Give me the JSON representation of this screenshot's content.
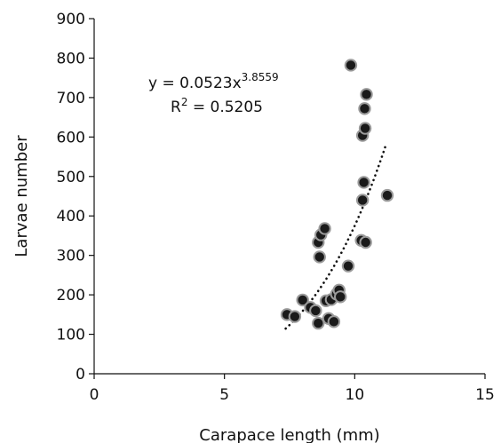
{
  "chart_data": {
    "type": "scatter",
    "xlabel": "Carapace length (mm)",
    "ylabel": "Larvae number",
    "xlim": [
      0,
      15
    ],
    "ylim": [
      0,
      900
    ],
    "x_ticks": [
      0,
      5,
      10,
      15
    ],
    "y_ticks": [
      0,
      100,
      200,
      300,
      400,
      500,
      600,
      700,
      800,
      900
    ],
    "grid": false,
    "legend": "none",
    "marker_color": "#1a1a1a",
    "marker_edge_color": "#9a9a9a",
    "points": [
      {
        "x": 7.4,
        "y": 150
      },
      {
        "x": 7.7,
        "y": 145
      },
      {
        "x": 8.0,
        "y": 187
      },
      {
        "x": 8.3,
        "y": 168
      },
      {
        "x": 8.5,
        "y": 160
      },
      {
        "x": 8.6,
        "y": 128
      },
      {
        "x": 8.6,
        "y": 333
      },
      {
        "x": 8.65,
        "y": 296
      },
      {
        "x": 8.7,
        "y": 352
      },
      {
        "x": 8.85,
        "y": 368
      },
      {
        "x": 8.9,
        "y": 185
      },
      {
        "x": 9.0,
        "y": 140
      },
      {
        "x": 9.1,
        "y": 188
      },
      {
        "x": 9.2,
        "y": 132
      },
      {
        "x": 9.3,
        "y": 202
      },
      {
        "x": 9.4,
        "y": 212
      },
      {
        "x": 9.45,
        "y": 195
      },
      {
        "x": 9.75,
        "y": 273
      },
      {
        "x": 9.85,
        "y": 782
      },
      {
        "x": 10.25,
        "y": 338
      },
      {
        "x": 10.3,
        "y": 440
      },
      {
        "x": 10.3,
        "y": 604
      },
      {
        "x": 10.35,
        "y": 485
      },
      {
        "x": 10.38,
        "y": 672
      },
      {
        "x": 10.4,
        "y": 622
      },
      {
        "x": 10.42,
        "y": 333
      },
      {
        "x": 10.45,
        "y": 708
      },
      {
        "x": 11.25,
        "y": 452
      }
    ],
    "trendline": {
      "style": "dotted",
      "coef": 0.0523,
      "exponent": 3.8559,
      "x_range": [
        7.35,
        11.2
      ]
    },
    "annotation": {
      "eq_prefix": "y = 0.0523x",
      "eq_exponent": "3.8559",
      "r2_prefix": "R",
      "r2_power": "2",
      "r2_value": " = 0.5205"
    }
  }
}
